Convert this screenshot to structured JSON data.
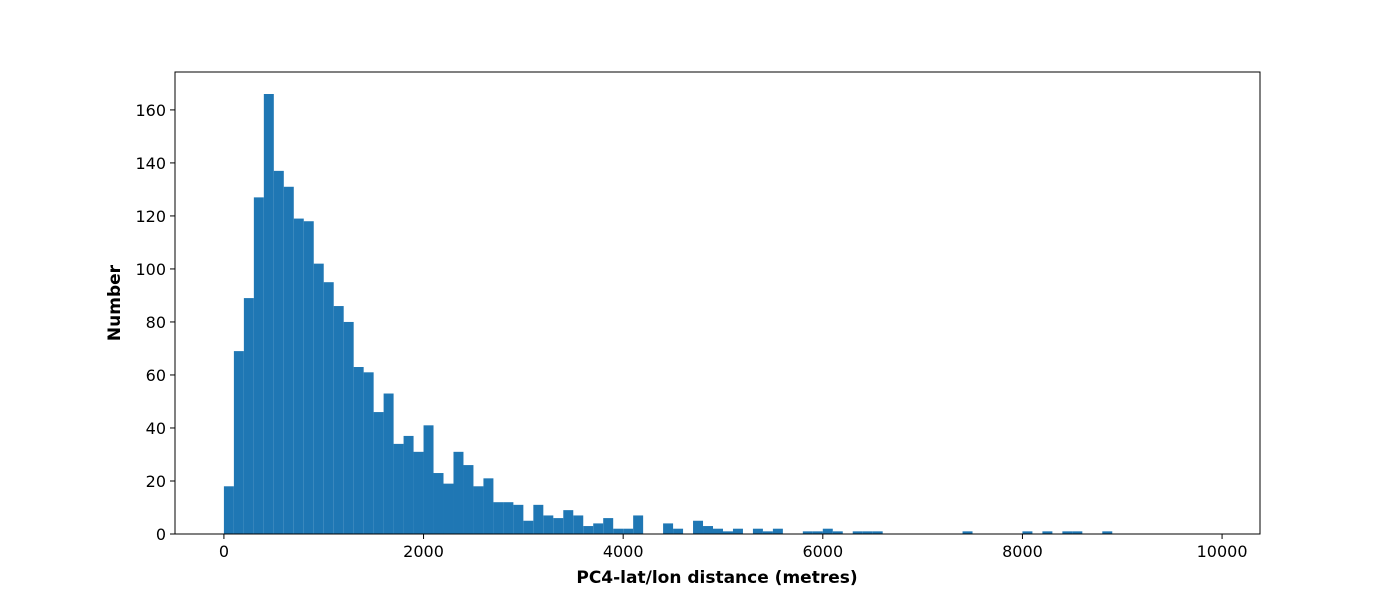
{
  "chart_data": {
    "type": "histogram",
    "xlabel": "PC4-lat/lon distance (metres)",
    "ylabel": "Number",
    "color": "#1f77b4",
    "bins": [
      0,
      100,
      200,
      300,
      400,
      500,
      600,
      700,
      800,
      900,
      1000,
      1100,
      1200,
      1300,
      1400,
      1500,
      1600,
      1700,
      1800,
      1900,
      2000,
      2100,
      2200,
      2300,
      2400,
      2500,
      2600,
      2700,
      2800,
      2900,
      3000,
      3100,
      3200,
      3300,
      3400,
      3500,
      3600,
      3700,
      3800,
      3900,
      4000,
      4100,
      4200,
      4300,
      4400,
      4500,
      4600,
      4700,
      4800,
      4900,
      5000,
      5100,
      5200,
      5300,
      5400,
      5500,
      5600,
      5700,
      5800,
      5900,
      6000,
      6100,
      6200,
      6300,
      6400,
      6500,
      6600,
      6700,
      6800,
      6900,
      7000,
      7100,
      7200,
      7300,
      7400,
      7500,
      7600,
      7700,
      7800,
      7900,
      8000,
      8100,
      8200,
      8300,
      8400,
      8500,
      8600,
      8700,
      8800,
      8900,
      9000,
      9100,
      9200,
      9300,
      9400,
      9500,
      9600,
      9700,
      9800,
      9900,
      10000
    ],
    "values": [
      18,
      69,
      89,
      127,
      166,
      137,
      131,
      119,
      118,
      102,
      95,
      86,
      80,
      63,
      61,
      46,
      53,
      34,
      37,
      31,
      41,
      23,
      19,
      31,
      26,
      18,
      21,
      12,
      12,
      11,
      5,
      11,
      7,
      6,
      9,
      7,
      3,
      4,
      6,
      2,
      2,
      7,
      0,
      0,
      4,
      2,
      0,
      5,
      3,
      2,
      1,
      2,
      0,
      2,
      1,
      2,
      0,
      0,
      1,
      1,
      2,
      1,
      0,
      1,
      1,
      1,
      0,
      0,
      0,
      0,
      0,
      0,
      0,
      0,
      1,
      0,
      0,
      0,
      0,
      0,
      1,
      0,
      1,
      0,
      1,
      1,
      0,
      0,
      1,
      0,
      0,
      0,
      0,
      0,
      0,
      0,
      0,
      0,
      0,
      0
    ],
    "xlim": [
      -490,
      10380
    ],
    "xticks": [
      0,
      2000,
      4000,
      6000,
      8000,
      10000
    ],
    "ylim": [
      0,
      174.3
    ],
    "yticks": [
      0,
      20,
      40,
      60,
      80,
      100,
      120,
      140,
      160
    ],
    "grid": false
  }
}
